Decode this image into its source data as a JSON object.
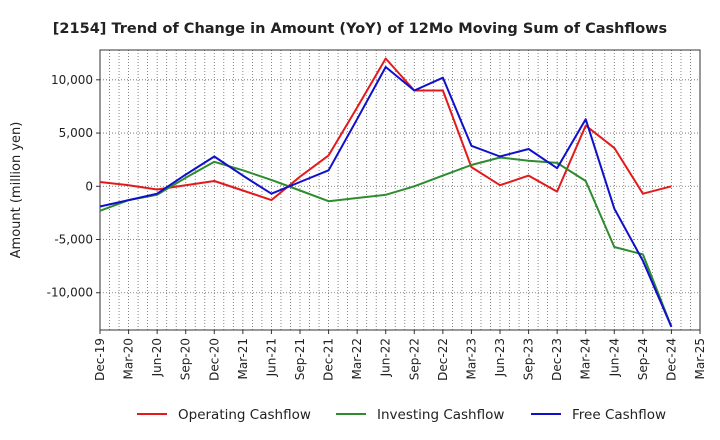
{
  "chart_data": {
    "type": "line",
    "title": "[2154]  Trend of Change in Amount (YoY) of 12Mo Moving Sum of Cashflows",
    "xlabel": "",
    "ylabel": "Amount (million yen)",
    "ylim": [
      -13500,
      12800
    ],
    "yticks": [
      10000,
      5000,
      0,
      -5000,
      -10000
    ],
    "ytick_labels": [
      "10,000",
      "5,000",
      "0",
      "-5,000",
      "-10,000"
    ],
    "categories": [
      "Dec-19",
      "Mar-20",
      "Jun-20",
      "Sep-20",
      "Dec-20",
      "Mar-21",
      "Jun-21",
      "Sep-21",
      "Dec-21",
      "Mar-22",
      "Jun-22",
      "Sep-22",
      "Dec-22",
      "Mar-23",
      "Jun-23",
      "Sep-23",
      "Dec-23",
      "Mar-24",
      "Jun-24",
      "Sep-24",
      "Dec-24",
      "Mar-25"
    ],
    "grid": true,
    "legend_position": "bottom",
    "series": [
      {
        "name": "Operating Cashflow",
        "color": "#e31a1c",
        "values": [
          400,
          100,
          -300,
          100,
          500,
          -400,
          -1300,
          900,
          2900,
          7400,
          12000,
          9000,
          9000,
          1800,
          100,
          1000,
          -500,
          5700,
          3600,
          -700,
          0,
          null
        ]
      },
      {
        "name": "Investing Cashflow",
        "color": "#2e8b2e",
        "values": [
          -2300,
          -1300,
          -800,
          800,
          2300,
          1500,
          600,
          -400,
          -1400,
          -1100,
          -800,
          0,
          1000,
          2000,
          2700,
          2400,
          2200,
          500,
          -5700,
          -6400,
          -13200,
          null
        ]
      },
      {
        "name": "Free Cashflow",
        "color": "#1010cc",
        "values": [
          -1900,
          -1300,
          -700,
          1100,
          2800,
          1000,
          -700,
          400,
          1500,
          6300,
          11200,
          9000,
          10200,
          3800,
          2800,
          3500,
          1700,
          6300,
          -2100,
          -7000,
          -13200,
          null
        ]
      }
    ]
  }
}
